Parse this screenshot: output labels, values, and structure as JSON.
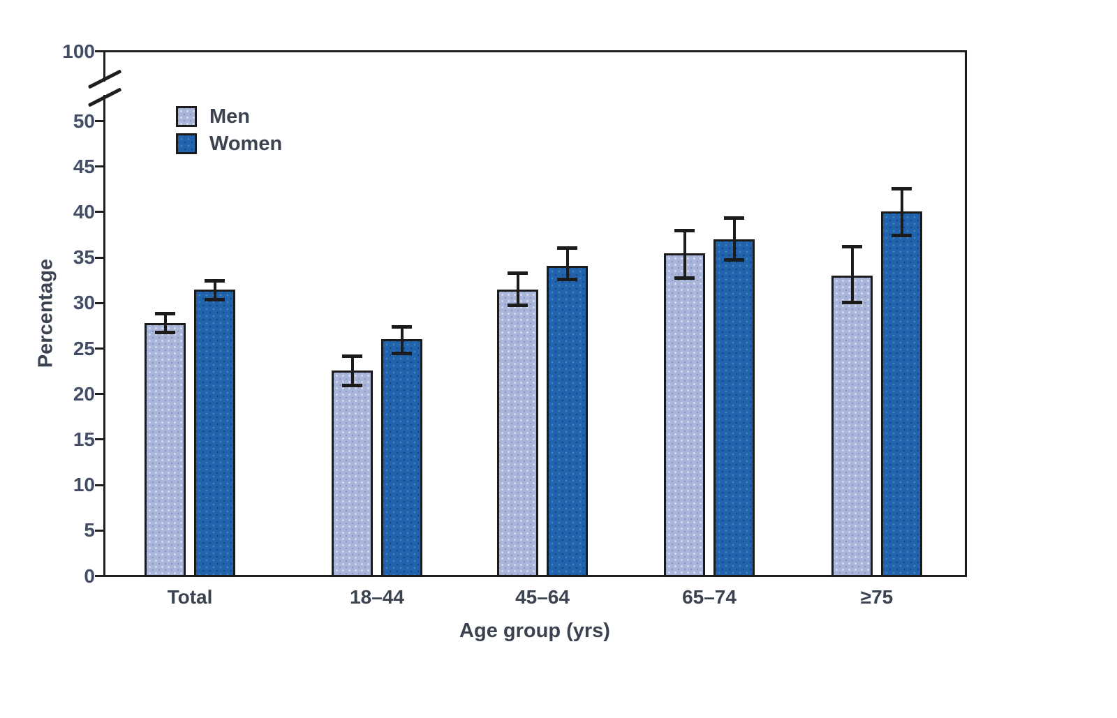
{
  "chart_data": {
    "type": "bar",
    "title": "",
    "xlabel": "Age group (yrs)",
    "ylabel": "Percentage",
    "categories": [
      "Total",
      "18–44",
      "45–64",
      "65–74",
      "≥75"
    ],
    "series": [
      {
        "name": "Men",
        "color": "#aab6d9",
        "values": [
          27.8,
          22.6,
          31.5,
          35.5,
          33.0
        ],
        "ci_low": [
          26.8,
          21.0,
          29.8,
          32.8,
          30.1
        ],
        "ci_high": [
          28.9,
          24.2,
          33.3,
          38.0,
          36.2
        ]
      },
      {
        "name": "Women",
        "color": "#2263ad",
        "values": [
          31.5,
          26.0,
          34.1,
          37.0,
          40.1
        ],
        "ci_low": [
          30.4,
          24.5,
          32.6,
          34.8,
          37.5
        ],
        "ci_high": [
          32.5,
          27.4,
          36.1,
          39.4,
          42.6
        ]
      }
    ],
    "error_bars": true,
    "y_axis": {
      "ticks": [
        0,
        5,
        10,
        15,
        20,
        25,
        30,
        35,
        40,
        45,
        50
      ],
      "broken_top_tick": 100,
      "axis_break": true,
      "range_shown": [
        0,
        52
      ]
    },
    "legend": {
      "position": "top-left-inside"
    },
    "grid": false
  },
  "colors": {
    "background": "#ffffff",
    "men": "#aab6d9",
    "women": "#2263ad",
    "bar_border": "#1b1b1b",
    "axis": "#1e1e1e",
    "text": "#3b4350",
    "tick_text": "#434e66"
  }
}
